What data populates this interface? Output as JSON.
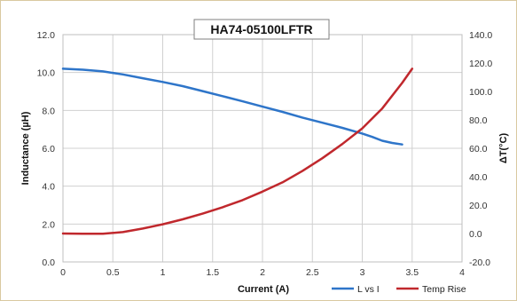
{
  "chart_data": {
    "type": "line",
    "title": "HA74-05100LFTR",
    "xlabel": "Current (A)",
    "ylabel": "Inductance (µH)",
    "y2label": "ΔT(°C)",
    "xlim": [
      0,
      4
    ],
    "ylim": [
      0,
      12
    ],
    "y2lim": [
      -20,
      140
    ],
    "x_ticks": [
      "0",
      "0.5",
      "1",
      "1.5",
      "2",
      "2.5",
      "3",
      "3.5",
      "4"
    ],
    "y_ticks": [
      "0.0",
      "2.0",
      "4.0",
      "6.0",
      "8.0",
      "10.0",
      "12.0"
    ],
    "y2_ticks": [
      "-20.0",
      "0.0",
      "20.0",
      "40.0",
      "60.0",
      "80.0",
      "100.0",
      "120.0",
      "140.0"
    ],
    "grid": true,
    "legend_position": "bottom-right",
    "series": [
      {
        "name": "L vs I",
        "axis": "left",
        "color": "#2e75c9",
        "x": [
          0,
          0.2,
          0.4,
          0.6,
          0.8,
          1.0,
          1.2,
          1.4,
          1.6,
          1.8,
          2.0,
          2.2,
          2.4,
          2.6,
          2.8,
          3.0,
          3.1,
          3.2,
          3.3,
          3.4
        ],
        "values": [
          10.2,
          10.15,
          10.06,
          9.9,
          9.7,
          9.5,
          9.28,
          9.02,
          8.75,
          8.48,
          8.2,
          7.92,
          7.62,
          7.35,
          7.08,
          6.78,
          6.6,
          6.4,
          6.28,
          6.2
        ]
      },
      {
        "name": "Temp Rise",
        "axis": "right",
        "color": "#c0282d",
        "x": [
          0,
          0.2,
          0.4,
          0.6,
          0.8,
          1.0,
          1.2,
          1.4,
          1.6,
          1.8,
          2.0,
          2.2,
          2.4,
          2.6,
          2.8,
          3.0,
          3.2,
          3.4,
          3.5
        ],
        "values": [
          0,
          -0.2,
          -0.2,
          1,
          3.5,
          6.5,
          10,
          14,
          18.5,
          23.5,
          29.5,
          36,
          44,
          53,
          63,
          74,
          88,
          106,
          116
        ]
      }
    ]
  }
}
